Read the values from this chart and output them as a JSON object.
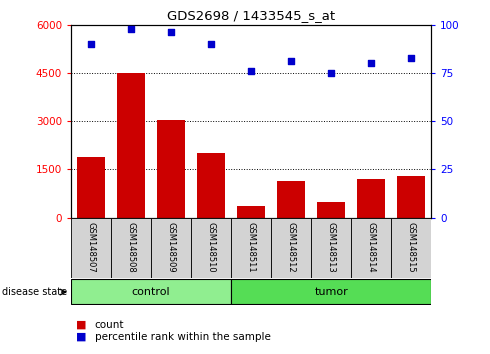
{
  "title": "GDS2698 / 1433545_s_at",
  "samples": [
    "GSM148507",
    "GSM148508",
    "GSM148509",
    "GSM148510",
    "GSM148511",
    "GSM148512",
    "GSM148513",
    "GSM148514",
    "GSM148515"
  ],
  "counts": [
    1900,
    4500,
    3050,
    2000,
    350,
    1150,
    500,
    1200,
    1300
  ],
  "percentile": [
    90,
    98,
    96,
    90,
    76,
    81,
    75,
    80,
    83
  ],
  "groups": [
    "control",
    "control",
    "control",
    "control",
    "tumor",
    "tumor",
    "tumor",
    "tumor",
    "tumor"
  ],
  "ylim_left": [
    0,
    6000
  ],
  "ylim_right": [
    0,
    100
  ],
  "yticks_left": [
    0,
    1500,
    3000,
    4500,
    6000
  ],
  "yticks_right": [
    0,
    25,
    50,
    75,
    100
  ],
  "bar_color": "#cc0000",
  "dot_color": "#0000cc",
  "control_color": "#90ee90",
  "tumor_color": "#55dd55",
  "bg_color": "#d3d3d3",
  "legend_count_label": "count",
  "legend_pct_label": "percentile rank within the sample",
  "disease_state_label": "disease state",
  "fig_width": 4.9,
  "fig_height": 3.54,
  "dpi": 100
}
